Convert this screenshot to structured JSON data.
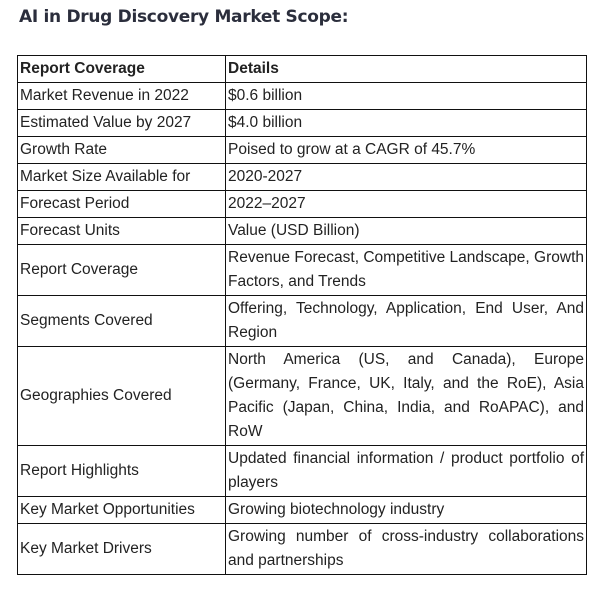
{
  "title": "AI in Drug Discovery Market Scope:",
  "table": {
    "header": [
      "Report Coverage",
      "Details"
    ],
    "rows": [
      [
        "Market Revenue in 2022",
        "$0.6 billion"
      ],
      [
        "Estimated Value by 2027",
        "$4.0 billion"
      ],
      [
        "Growth Rate",
        "Poised to grow at a CAGR of 45.7%"
      ],
      [
        "Market Size Available for",
        "2020-2027"
      ],
      [
        "Forecast Period",
        "2022–2027"
      ],
      [
        "Forecast Units",
        "Value (USD Billion)"
      ],
      [
        "Report Coverage",
        "Revenue Forecast, Competitive Landscape, Growth Factors, and Trends"
      ],
      [
        "Segments Covered",
        "Offering, Technology, Application, End User, And Region"
      ],
      [
        "Geographies Covered",
        "North America (US, and Canada), Europe (Germany, France, UK, Italy, and the RoE), Asia Pacific (Japan, China, India, and RoAPAC), and RoW"
      ],
      [
        "Report Highlights",
        "Updated financial information / product portfolio of players"
      ],
      [
        "Key Market Opportunities",
        "Growing biotechnology industry"
      ],
      [
        "Key Market Drivers",
        "Growing number of cross-industry collaborations and partnerships"
      ]
    ]
  }
}
